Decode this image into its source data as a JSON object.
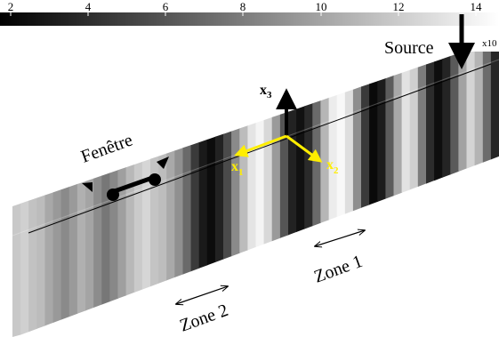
{
  "colorbar": {
    "ticks": [
      "2",
      "4",
      "6",
      "8",
      "10",
      "12",
      "14"
    ],
    "exponent_label": "x10"
  },
  "labels": {
    "source": "Source",
    "window": "Fenêtre",
    "zone1": "Zone 1",
    "zone2": "Zone 2"
  },
  "axes": {
    "x1": {
      "base": "x",
      "sub": "1"
    },
    "x2": {
      "base": "x",
      "sub": "2"
    },
    "x3": {
      "base": "x",
      "sub": "3"
    }
  },
  "colors": {
    "axis_highlight": "#ffee00",
    "vertical_axis": "#000000",
    "background": "#ffffff"
  }
}
